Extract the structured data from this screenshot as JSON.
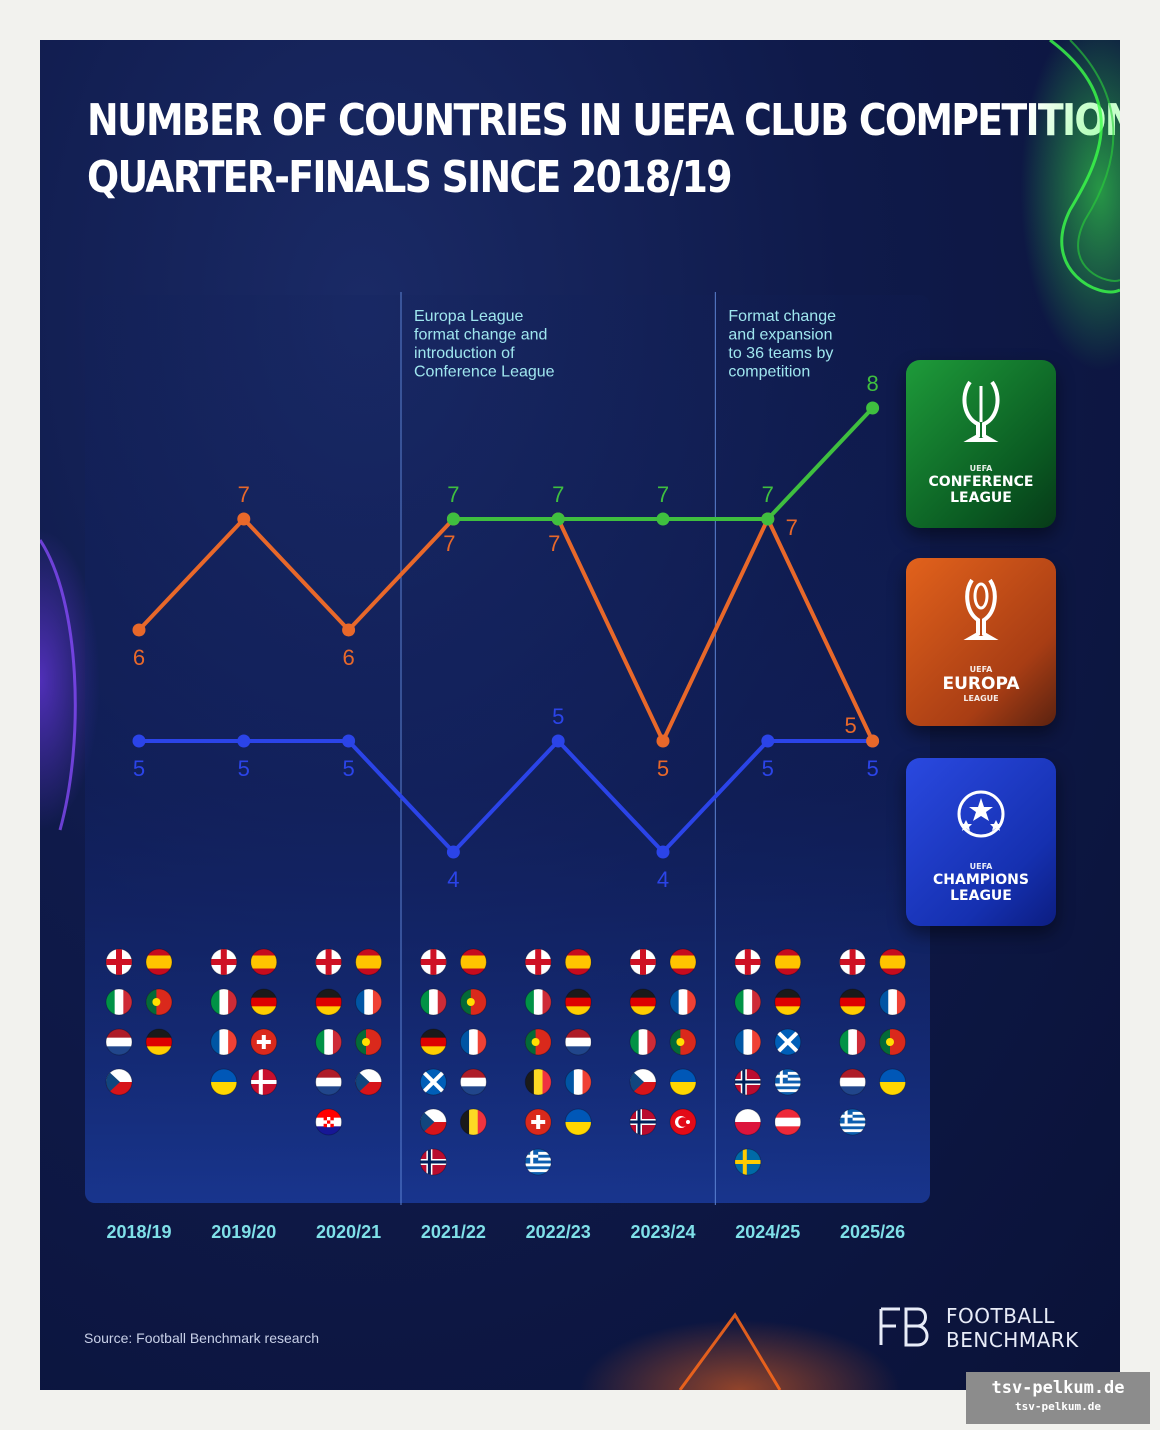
{
  "title_line1": "NUMBER OF COUNTRIES IN UEFA CLUB COMPETITION",
  "title_line2": "QUARTER-FINALS SINCE 2018/19",
  "annotations": [
    {
      "after_season": "2020/21",
      "lines": [
        "Europa League",
        "format change and",
        "introduction of",
        "Conference League"
      ]
    },
    {
      "after_season": "2023/24",
      "lines": [
        "Format change",
        "and expansion",
        "to 36 teams by",
        "competition"
      ]
    }
  ],
  "badges": {
    "conference": {
      "line1": "UEFA",
      "line2": "CONFERENCE",
      "line3": "LEAGUE"
    },
    "europa": {
      "line1": "UEFA",
      "line2": "EUROPA",
      "line3": "LEAGUE"
    },
    "champions": {
      "line1": "UEFA",
      "line2": "CHAMPIONS",
      "line3": "LEAGUE"
    }
  },
  "colors": {
    "conference": "#3fbf3f",
    "europa": "#e8682a",
    "champions": "#2b44e8",
    "season_label": "#7fe0e8"
  },
  "chart_data": {
    "type": "line",
    "categories": [
      "2018/19",
      "2019/20",
      "2020/21",
      "2021/22",
      "2022/23",
      "2023/24",
      "2024/25",
      "2025/26"
    ],
    "ylim": [
      3.5,
      8.5
    ],
    "series": [
      {
        "name": "Champions League",
        "values": [
          5,
          5,
          5,
          4,
          5,
          4,
          5,
          5
        ]
      },
      {
        "name": "Europa League",
        "values": [
          6,
          7,
          6,
          7,
          7,
          5,
          7,
          5
        ]
      },
      {
        "name": "Conference League",
        "values": [
          null,
          null,
          null,
          7,
          7,
          7,
          7,
          8
        ]
      }
    ]
  },
  "flags": [
    [
      "england",
      "spain",
      "italy",
      "portugal",
      "netherlands",
      "germany",
      "czechia"
    ],
    [
      "england",
      "spain",
      "italy",
      "germany",
      "france",
      "switzerland",
      "ukraine",
      "denmark"
    ],
    [
      "england",
      "spain",
      "germany",
      "france",
      "italy",
      "portugal",
      "netherlands",
      "czechia",
      "croatia"
    ],
    [
      "england",
      "spain",
      "italy",
      "portugal",
      "germany",
      "france",
      "scotland",
      "netherlands",
      "czechia",
      "belgium",
      "norway"
    ],
    [
      "england",
      "spain",
      "italy",
      "germany",
      "portugal",
      "netherlands",
      "belgium",
      "france",
      "switzerland",
      "ukraine",
      "greece"
    ],
    [
      "england",
      "spain",
      "germany",
      "france",
      "italy",
      "portugal",
      "czechia",
      "ukraine",
      "norway",
      "turkey"
    ],
    [
      "england",
      "spain",
      "italy",
      "germany",
      "france",
      "scotland",
      "norway",
      "greece",
      "poland",
      "austria",
      "sweden"
    ],
    [
      "england",
      "spain",
      "germany",
      "france",
      "italy",
      "portugal",
      "netherlands",
      "ukraine",
      "greece"
    ]
  ],
  "source": "Source: Football Benchmark research",
  "logo": {
    "line1": "FOOTBALL",
    "line2": "BENCHMARK"
  },
  "watermark": {
    "line1": "tsv-pelkum.de",
    "line2": "tsv-pelkum.de"
  }
}
